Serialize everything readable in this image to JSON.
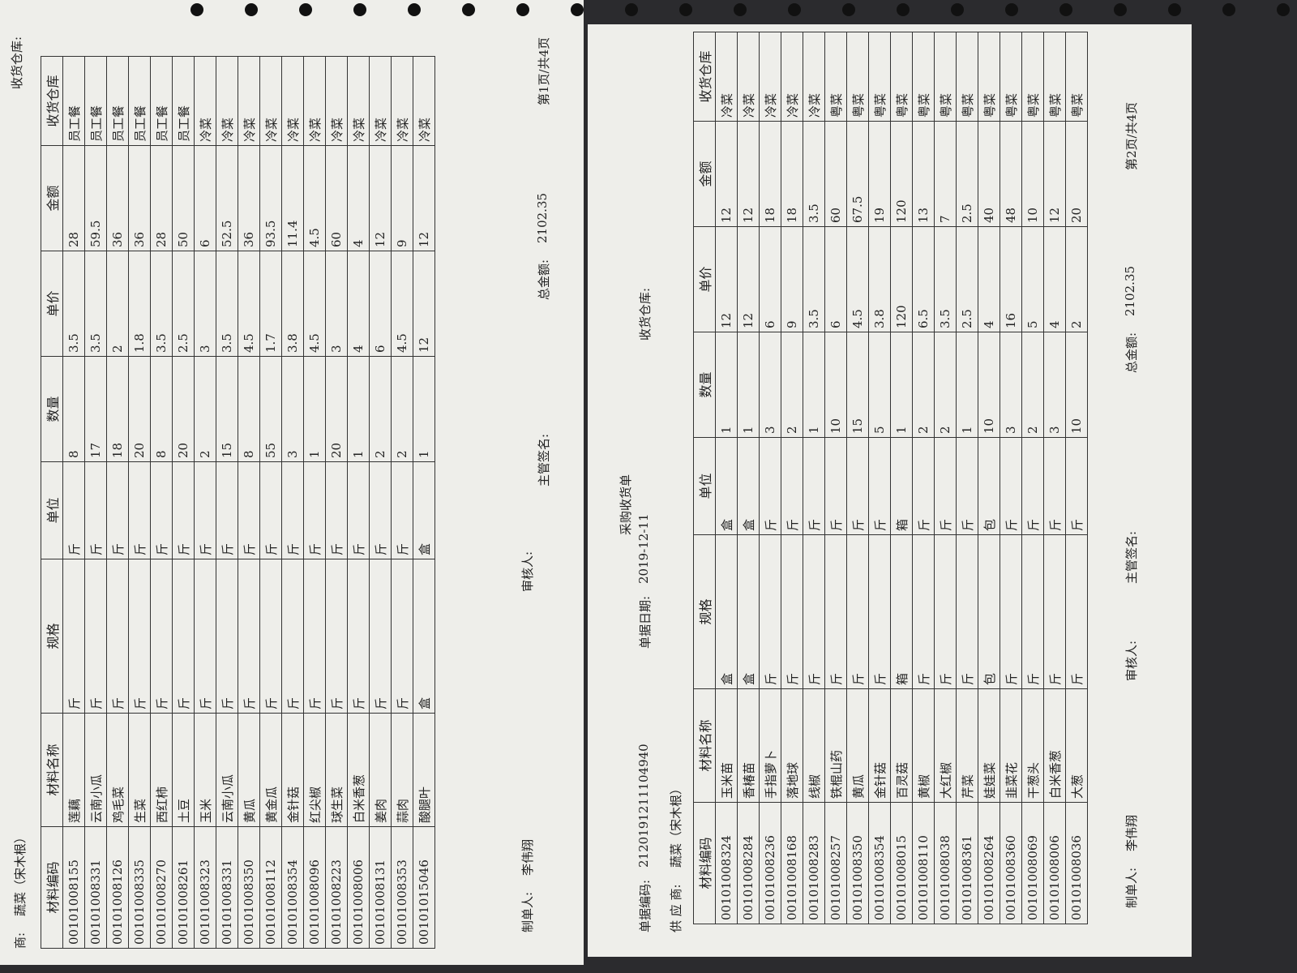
{
  "pages": [
    {
      "header": {
        "supplier_label": "商:",
        "supplier": "蔬菜（宋木根）",
        "warehouse_label": "收货仓库:"
      },
      "table": {
        "columns": [
          "材料编码",
          "材料名称",
          "规格",
          "单位",
          "数量",
          "单价",
          "金额",
          "收货仓库"
        ],
        "rows": [
          [
            "00101008155",
            "莲藕",
            "斤",
            "斤",
            8,
            3.5,
            28,
            "员工餐"
          ],
          [
            "00101008331",
            "云南小瓜",
            "斤",
            "斤",
            17,
            3.5,
            59.5,
            "员工餐"
          ],
          [
            "00101008126",
            "鸡毛菜",
            "斤",
            "斤",
            18,
            2,
            36,
            "员工餐"
          ],
          [
            "00101008335",
            "生菜",
            "斤",
            "斤",
            20,
            1.8,
            36,
            "员工餐"
          ],
          [
            "00101008270",
            "西红柿",
            "斤",
            "斤",
            8,
            3.5,
            28,
            "员工餐"
          ],
          [
            "00101008261",
            "土豆",
            "斤",
            "斤",
            20,
            2.5,
            50,
            "员工餐"
          ],
          [
            "00101008323",
            "玉米",
            "斤",
            "斤",
            2,
            3,
            6,
            "冷菜"
          ],
          [
            "00101008331",
            "云南小瓜",
            "斤",
            "斤",
            15,
            3.5,
            52.5,
            "冷菜"
          ],
          [
            "00101008350",
            "黄瓜",
            "斤",
            "斤",
            8,
            4.5,
            36,
            "冷菜"
          ],
          [
            "00101008112",
            "黄金瓜",
            "斤",
            "斤",
            55,
            1.7,
            93.5,
            "冷菜"
          ],
          [
            "00101008354",
            "金针菇",
            "斤",
            "斤",
            3,
            3.8,
            11.4,
            "冷菜"
          ],
          [
            "00101008096",
            "红尖椒",
            "斤",
            "斤",
            1,
            4.5,
            4.5,
            "冷菜"
          ],
          [
            "00101008223",
            "球生菜",
            "斤",
            "斤",
            20,
            3,
            60,
            "冷菜"
          ],
          [
            "00101008006",
            "白米香葱",
            "斤",
            "斤",
            1,
            4,
            4,
            "冷菜"
          ],
          [
            "00101008131",
            "姜肉",
            "斤",
            "斤",
            2,
            6,
            12,
            "冷菜"
          ],
          [
            "00101008353",
            "蒜肉",
            "斤",
            "斤",
            2,
            4.5,
            9,
            "冷菜"
          ],
          [
            "00101015046",
            "酸腿叶",
            "盒",
            "盒",
            1,
            12,
            12,
            "冷菜"
          ]
        ]
      },
      "footer": {
        "maker_label": "制单人:",
        "maker": "李伟翔",
        "reviewer_label": "审核人:",
        "manager_label": "主管签名:",
        "total_label": "总金额:",
        "total": 2102.35,
        "page": "第1页/共4页"
      }
    },
    {
      "header": {
        "title": "采购收货单",
        "doc_no_label": "单据编码:",
        "doc_no": "2120191211104940",
        "date_label": "单据日期:",
        "date": "2019-12-11",
        "supplier_label": "供 应 商:",
        "supplier": "蔬菜（宋木根）",
        "warehouse_label": "收货仓库:"
      },
      "table": {
        "columns": [
          "材料编码",
          "材料名称",
          "规格",
          "单位",
          "数量",
          "单价",
          "金额",
          "收货仓库"
        ],
        "rows": [
          [
            "00101008324",
            "玉米苗",
            "盒",
            "盒",
            1,
            12,
            12,
            "冷菜"
          ],
          [
            "00101008284",
            "香椿苗",
            "盒",
            "盒",
            1,
            12,
            12,
            "冷菜"
          ],
          [
            "00101008236",
            "手指萝卜",
            "斤",
            "斤",
            3,
            6,
            18,
            "冷菜"
          ],
          [
            "00101008168",
            "落地球",
            "斤",
            "斤",
            2,
            9,
            18,
            "冷菜"
          ],
          [
            "00101008283",
            "线椒",
            "斤",
            "斤",
            1,
            3.5,
            3.5,
            "冷菜"
          ],
          [
            "00101008257",
            "铁棍山药",
            "斤",
            "斤",
            10,
            6,
            60,
            "粤菜"
          ],
          [
            "00101008350",
            "黄瓜",
            "斤",
            "斤",
            15,
            4.5,
            67.5,
            "粤菜"
          ],
          [
            "00101008354",
            "金针菇",
            "斤",
            "斤",
            5,
            3.8,
            19,
            "粤菜"
          ],
          [
            "00101008015",
            "百灵菇",
            "箱",
            "箱",
            1,
            120,
            120,
            "粤菜"
          ],
          [
            "00101008110",
            "黄椒",
            "斤",
            "斤",
            2,
            6.5,
            13,
            "粤菜"
          ],
          [
            "00101008038",
            "大红椒",
            "斤",
            "斤",
            2,
            3.5,
            7,
            "粤菜"
          ],
          [
            "00101008361",
            "芹菜",
            "斤",
            "斤",
            1,
            2.5,
            2.5,
            "粤菜"
          ],
          [
            "00101008264",
            "娃娃菜",
            "包",
            "包",
            10,
            4,
            40,
            "粤菜"
          ],
          [
            "00101008360",
            "韭菜花",
            "斤",
            "斤",
            3,
            16,
            48,
            "粤菜"
          ],
          [
            "00101008069",
            "干葱头",
            "斤",
            "斤",
            2,
            5,
            10,
            "粤菜"
          ],
          [
            "00101008006",
            "白米香葱",
            "斤",
            "斤",
            3,
            4,
            12,
            "粤菜"
          ],
          [
            "00101008036",
            "大葱",
            "斤",
            "斤",
            10,
            2,
            20,
            "粤菜"
          ]
        ]
      },
      "footer": {
        "maker_label": "制单人:",
        "maker": "李伟翔",
        "reviewer_label": "审核人:",
        "manager_label": "主管签名:",
        "total_label": "总金额:",
        "total": 2102.35,
        "page": "第2页/共4页"
      }
    }
  ]
}
